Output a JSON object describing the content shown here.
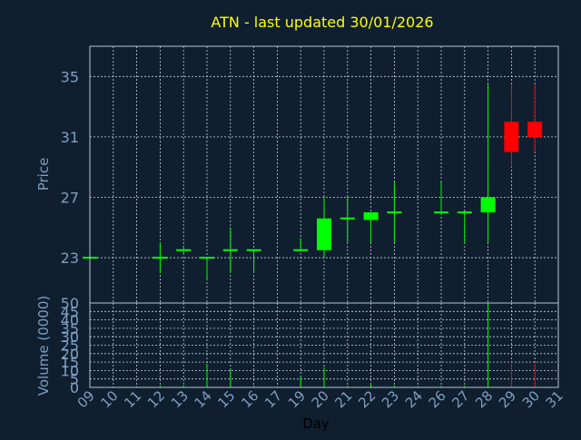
{
  "title": "ATN - last updated 30/01/2026",
  "colors": {
    "background": "#0f1f30",
    "frame": "#b8c4d0",
    "grid": "#c8d0d8",
    "title": "#ffff00",
    "axis_text": "#7f9fbf",
    "xlabel_text": "#000000",
    "up": "#00ff00",
    "down": "#ff0000"
  },
  "chart_data": [
    {
      "type": "candlestick",
      "ylabel": "Price",
      "ylim": [
        20,
        37
      ],
      "yticks": [
        23,
        27,
        31,
        35
      ],
      "grid": true,
      "x": [
        "09",
        "10",
        "11",
        "12",
        "13",
        "14",
        "15",
        "16",
        "17",
        "19",
        "20",
        "21",
        "22",
        "23",
        "24",
        "26",
        "27",
        "28",
        "29",
        "30",
        "31"
      ],
      "candles": [
        {
          "day": "09",
          "open": 23,
          "high": 23,
          "low": 23,
          "close": 23
        },
        {
          "day": "12",
          "open": 23,
          "high": 24,
          "low": 22,
          "close": 23
        },
        {
          "day": "13",
          "open": 23.5,
          "high": 23.7,
          "low": 23.3,
          "close": 23.5
        },
        {
          "day": "14",
          "open": 23,
          "high": 23,
          "low": 21.6,
          "close": 23
        },
        {
          "day": "15",
          "open": 23.5,
          "high": 25,
          "low": 22,
          "close": 23.5
        },
        {
          "day": "16",
          "open": 23.5,
          "high": 23.5,
          "low": 22,
          "close": 23.5
        },
        {
          "day": "19",
          "open": 23.5,
          "high": 24.3,
          "low": 23.5,
          "close": 23.5
        },
        {
          "day": "20",
          "open": 23.5,
          "high": 27,
          "low": 23,
          "close": 25.6
        },
        {
          "day": "21",
          "open": 25.6,
          "high": 27,
          "low": 24,
          "close": 25.6
        },
        {
          "day": "22",
          "open": 25.5,
          "high": 26,
          "low": 24,
          "close": 26
        },
        {
          "day": "23",
          "open": 26,
          "high": 28,
          "low": 24,
          "close": 26
        },
        {
          "day": "26",
          "open": 26,
          "high": 28,
          "low": 26,
          "close": 26
        },
        {
          "day": "27",
          "open": 26,
          "high": 26,
          "low": 24,
          "close": 26
        },
        {
          "day": "28",
          "open": 26,
          "high": 34.5,
          "low": 24,
          "close": 27
        },
        {
          "day": "29",
          "open": 32,
          "high": 34.5,
          "low": 29,
          "close": 30
        },
        {
          "day": "30",
          "open": 32,
          "high": 34.5,
          "low": 30,
          "close": 31
        }
      ]
    },
    {
      "type": "bar",
      "ylabel": "Volume (0000)",
      "xlabel": "Day",
      "ylim": [
        0,
        50
      ],
      "yticks": [
        0,
        5,
        10,
        15,
        20,
        25,
        30,
        35,
        40,
        45,
        50
      ],
      "grid": true,
      "x": [
        "09",
        "10",
        "11",
        "12",
        "13",
        "14",
        "15",
        "16",
        "17",
        "19",
        "20",
        "21",
        "22",
        "23",
        "24",
        "26",
        "27",
        "28",
        "29",
        "30",
        "31"
      ],
      "volumes": [
        {
          "day": "09",
          "value": 0.5,
          "direction": "up"
        },
        {
          "day": "12",
          "value": 1,
          "direction": "up"
        },
        {
          "day": "13",
          "value": 1,
          "direction": "up"
        },
        {
          "day": "14",
          "value": 14,
          "direction": "up"
        },
        {
          "day": "15",
          "value": 11,
          "direction": "up"
        },
        {
          "day": "16",
          "value": 1,
          "direction": "up"
        },
        {
          "day": "19",
          "value": 6,
          "direction": "up"
        },
        {
          "day": "20",
          "value": 12,
          "direction": "up"
        },
        {
          "day": "21",
          "value": 1,
          "direction": "up"
        },
        {
          "day": "22",
          "value": 2,
          "direction": "up"
        },
        {
          "day": "23",
          "value": 1,
          "direction": "up"
        },
        {
          "day": "26",
          "value": 1,
          "direction": "up"
        },
        {
          "day": "27",
          "value": 1,
          "direction": "up"
        },
        {
          "day": "28",
          "value": 50,
          "direction": "up"
        },
        {
          "day": "29",
          "value": 15,
          "direction": "down"
        },
        {
          "day": "30",
          "value": 14,
          "direction": "down"
        }
      ]
    }
  ]
}
